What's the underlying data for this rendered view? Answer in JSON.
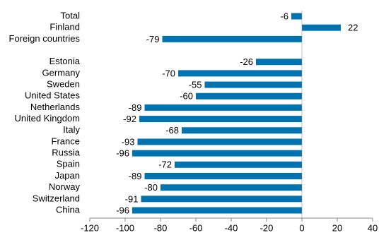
{
  "chart_data": {
    "type": "bar",
    "orientation": "horizontal",
    "categories": [
      "Total",
      "Finland",
      "Foreign countries",
      null,
      "Estonia",
      "Germany",
      "Sweden",
      "United States",
      "Netherlands",
      "United Kingdom",
      "Italy",
      "France",
      "Russia",
      "Spain",
      "Japan",
      "Norway",
      "Switzerland",
      "China"
    ],
    "values": [
      -6,
      22,
      -79,
      null,
      -26,
      -70,
      -55,
      -60,
      -89,
      -92,
      -68,
      -93,
      -96,
      -72,
      -89,
      -80,
      -91,
      -96
    ],
    "color": "#0073b0",
    "xlim": [
      -120,
      40
    ],
    "xticks": [
      -120,
      -100,
      -80,
      -60,
      -40,
      -20,
      0,
      20,
      40
    ],
    "grid": false
  }
}
